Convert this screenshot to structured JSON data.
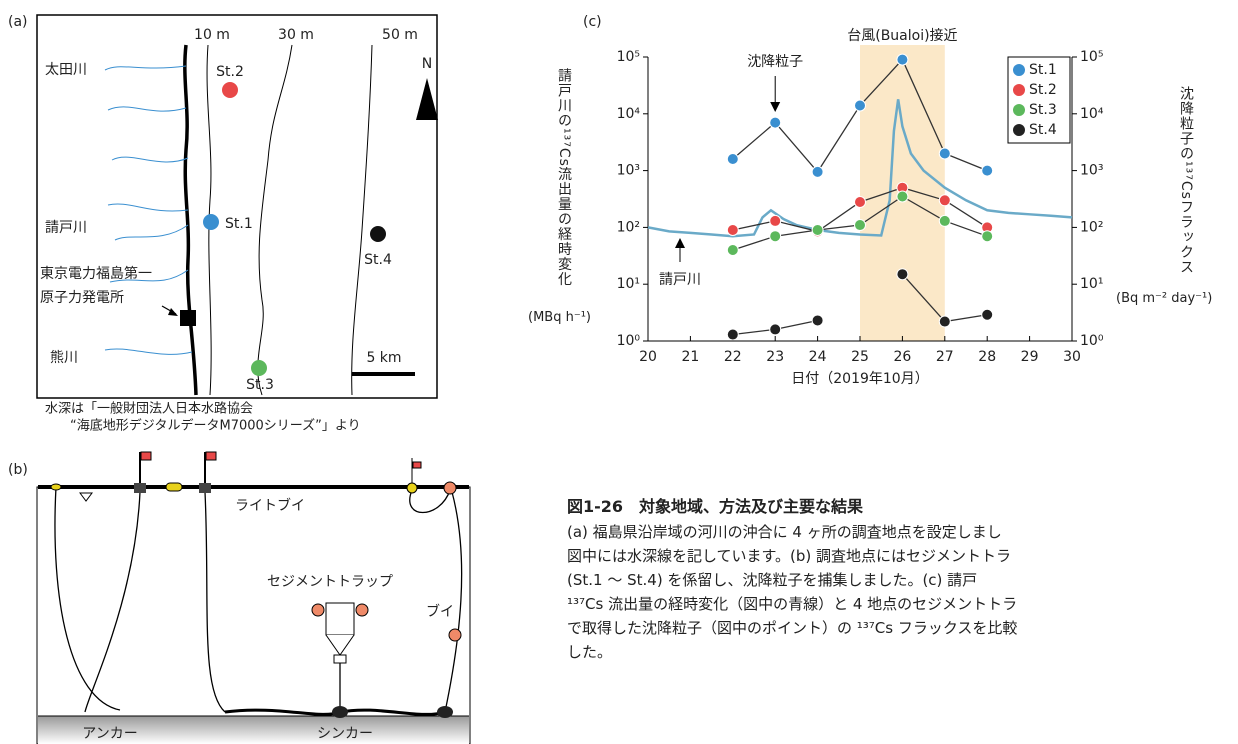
{
  "panel_a": {
    "label": "(a)",
    "depth_labels": [
      "10 m",
      "30 m",
      "50 m"
    ],
    "rivers": [
      "太田川",
      "請戸川",
      "熊川"
    ],
    "stations": [
      "St.1",
      "St.2",
      "St.3",
      "St.4"
    ],
    "plant": [
      "東京電力福島第一",
      "原子力発電所"
    ],
    "north": "N",
    "scale": "5 km",
    "note": [
      "水深は「一般財団法人日本水路協会",
      "“海底地形デジタルデータM7000シリーズ”」より"
    ]
  },
  "panel_b": {
    "label": "(b)",
    "light_buoy": "ライトブイ",
    "buoy": "ブイ",
    "trap": "セジメントトラップ",
    "anchor": "アンカー",
    "sinker": "シンカー"
  },
  "chart_data": {
    "type": "line",
    "panel_label": "(c)",
    "xlabel": "日付（2019年10月）",
    "ylabel": "請戸川の¹³⁷Cs流出量の経時変化",
    "ylabel_unit": "(MBq h⁻¹)",
    "y2label": "沈降粒子の¹³⁷Csフラックス",
    "y2label_unit": "(Bq m⁻² day⁻¹)",
    "annotation": "沈降粒子",
    "highlight": {
      "x": [
        25,
        27
      ],
      "label": "台風(Bualoi)接近",
      "color": "#fbe8c8"
    },
    "xlim": [
      20,
      30
    ],
    "xticks": [
      20,
      21,
      22,
      23,
      24,
      25,
      26,
      27,
      28,
      29,
      30
    ],
    "ylog": true,
    "ylim": [
      1,
      100000
    ],
    "yticks": [
      {
        "value": 1,
        "label": "10⁰"
      },
      {
        "value": 10,
        "label": "10¹"
      },
      {
        "value": 100,
        "label": "10²"
      },
      {
        "value": 1000,
        "label": "10³"
      },
      {
        "value": 10000,
        "label": "10⁴"
      },
      {
        "value": 100000,
        "label": "10⁵"
      }
    ],
    "y2lim": [
      1,
      100000
    ],
    "y2ticks": [
      {
        "value": 1,
        "label": "10⁰"
      },
      {
        "value": 10,
        "label": "10¹"
      },
      {
        "value": 100,
        "label": "10²"
      },
      {
        "value": 1000,
        "label": "10³"
      },
      {
        "value": 10000,
        "label": "10⁴"
      },
      {
        "value": 100000,
        "label": "10⁵"
      }
    ],
    "legend": "upper right",
    "series": [
      {
        "name": "請戸川",
        "color": "#6aaac8",
        "marker": false,
        "axis": "y",
        "x": [
          20,
          20.5,
          21,
          21.5,
          22,
          22.5,
          22.7,
          22.9,
          23.2,
          23.5,
          24,
          24.5,
          25,
          25.5,
          25.7,
          25.8,
          25.9,
          26,
          26.2,
          26.5,
          27,
          27.5,
          28,
          28.5,
          29,
          29.5,
          30
        ],
        "values": [
          100,
          85,
          80,
          75,
          70,
          75,
          150,
          200,
          140,
          110,
          90,
          80,
          75,
          72,
          300,
          5000,
          18000,
          6000,
          2000,
          1000,
          500,
          300,
          200,
          180,
          170,
          160,
          150
        ]
      },
      {
        "name": "St.1",
        "color": "#3a8fd0",
        "marker": true,
        "axis": "y2",
        "x": [
          22,
          23,
          24,
          25,
          26,
          27,
          28
        ],
        "values": [
          1600,
          7000,
          950,
          14000,
          90000,
          2000,
          1000
        ]
      },
      {
        "name": "St.2",
        "color": "#e84848",
        "marker": true,
        "axis": "y2",
        "x": [
          22,
          23,
          24,
          25,
          26,
          27,
          28
        ],
        "values": [
          90,
          130,
          85,
          280,
          500,
          300,
          100
        ]
      },
      {
        "name": "St.3",
        "color": "#5cb85c",
        "marker": true,
        "axis": "y2",
        "x": [
          22,
          23,
          24,
          25,
          26,
          27,
          28
        ],
        "values": [
          40,
          70,
          90,
          110,
          350,
          130,
          70
        ]
      },
      {
        "name": "St.4",
        "color": "#222222",
        "marker": true,
        "axis": "y2",
        "x": [
          22,
          23,
          24,
          25,
          26,
          27,
          28
        ],
        "values": [
          1.3,
          1.6,
          2.3,
          null,
          15,
          2.2,
          2.9
        ]
      }
    ]
  },
  "caption": {
    "title": "図1-26　対象地域、方法及び主要な結果",
    "lines": [
      "(a) 福島県沿岸域の河川の沖合に 4 ヶ所の調査地点を設定しまし",
      "図中には水深線を記しています。(b) 調査地点にはセジメントトラ",
      "(St.1 ～ St.4) を係留し、沈降粒子を捕集しました。(c) 請戸",
      "¹³⁷Cs 流出量の経時変化（図中の青線）と 4 地点のセジメントトラ",
      "で取得した沈降粒子（図中のポイント）の ¹³⁷Cs フラックスを比較",
      "した。"
    ]
  }
}
